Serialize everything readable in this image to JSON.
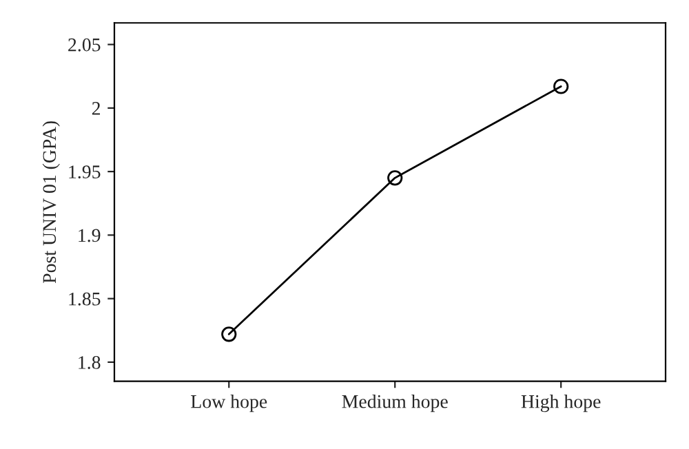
{
  "chart_data": {
    "type": "line",
    "ylabel": "Post UNIV 01 (GPA)",
    "categories": [
      "Low hope",
      "Medium hope",
      "High hope"
    ],
    "series": [
      {
        "color": "#000000",
        "values": [
          1.822,
          1.945,
          2.017
        ]
      }
    ],
    "ylim": [
      1.785,
      2.067
    ],
    "yticks": [
      1.8,
      1.85,
      1.9,
      1.95,
      2,
      2.05
    ],
    "marker": "circle",
    "line_style": "solid",
    "grid": false,
    "legend": false
  }
}
